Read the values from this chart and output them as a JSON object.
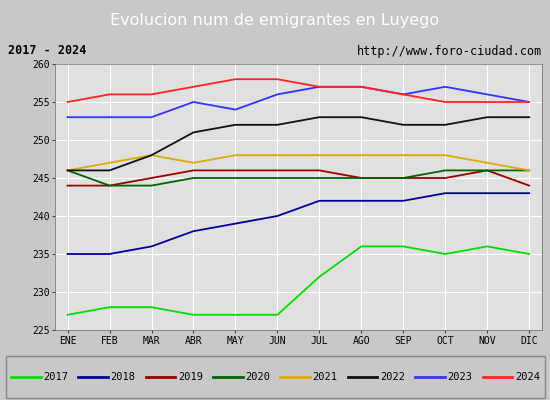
{
  "title": "Evolucion num de emigrantes en Luyego",
  "subtitle_left": "2017 - 2024",
  "subtitle_right": "http://www.foro-ciudad.com",
  "x_labels": [
    "ENE",
    "FEB",
    "MAR",
    "ABR",
    "MAY",
    "JUN",
    "JUL",
    "AGO",
    "SEP",
    "OCT",
    "NOV",
    "DIC"
  ],
  "ylim": [
    225,
    260
  ],
  "yticks": [
    225,
    230,
    235,
    240,
    245,
    250,
    255,
    260
  ],
  "series": {
    "2017": {
      "color": "#00dd00",
      "data": [
        227,
        228,
        228,
        227,
        227,
        227,
        232,
        236,
        236,
        235,
        236,
        235
      ]
    },
    "2018": {
      "color": "#000099",
      "data": [
        235,
        235,
        236,
        238,
        239,
        240,
        242,
        242,
        242,
        243,
        243,
        243
      ]
    },
    "2019": {
      "color": "#990000",
      "data": [
        244,
        244,
        245,
        246,
        246,
        246,
        246,
        245,
        245,
        245,
        246,
        244
      ]
    },
    "2020": {
      "color": "#006400",
      "data": [
        246,
        244,
        244,
        245,
        245,
        245,
        245,
        245,
        245,
        246,
        246,
        246
      ]
    },
    "2021": {
      "color": "#ddaa00",
      "data": [
        246,
        247,
        248,
        247,
        248,
        248,
        248,
        248,
        248,
        248,
        247,
        246
      ]
    },
    "2022": {
      "color": "#111111",
      "data": [
        246,
        246,
        248,
        251,
        252,
        252,
        253,
        253,
        252,
        252,
        253,
        253
      ]
    },
    "2023": {
      "color": "#3333ff",
      "data": [
        253,
        253,
        253,
        255,
        254,
        256,
        257,
        257,
        256,
        257,
        256,
        255
      ]
    },
    "2024": {
      "color": "#ff2222",
      "data": [
        255,
        256,
        256,
        257,
        258,
        258,
        257,
        257,
        256,
        255,
        255,
        255
      ]
    }
  },
  "background_color": "#c8c8c8",
  "plot_bg_color": "#e0e0e0",
  "title_bg_color": "#4a6fa5",
  "title_color": "#ffffff",
  "subtitle_bg_color": "#e8e8e8",
  "grid_color": "#ffffff",
  "legend_order": [
    "2017",
    "2018",
    "2019",
    "2020",
    "2021",
    "2022",
    "2023",
    "2024"
  ],
  "fig_width": 5.5,
  "fig_height": 4.0,
  "dpi": 100
}
